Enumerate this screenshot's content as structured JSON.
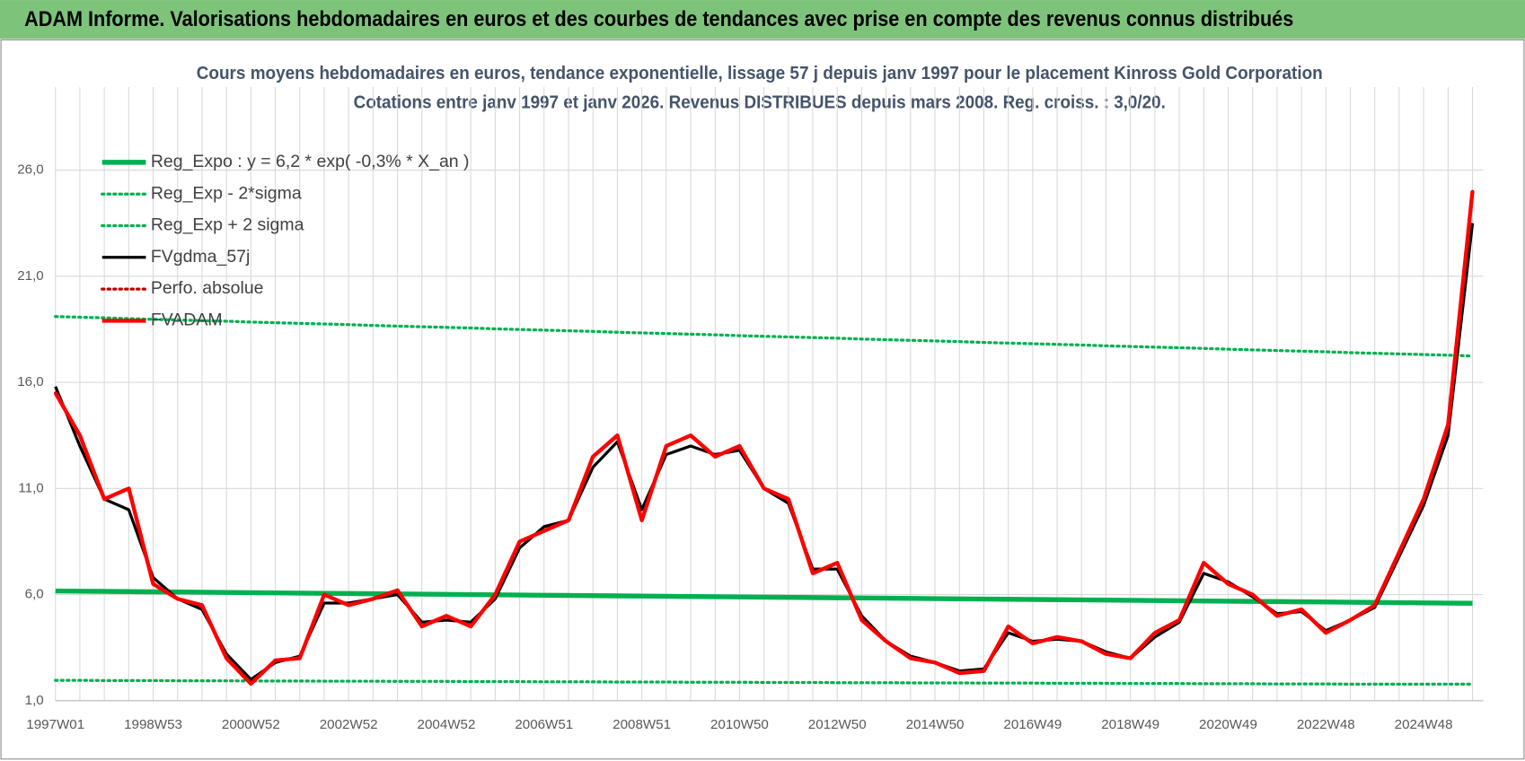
{
  "header": {
    "title": "ADAM Informe. Valorisations hebdomadaires en euros et des courbes de tendances avec prise en compte des revenus connus distribués"
  },
  "chart_data": {
    "type": "line",
    "title": "Cours moyens hebdomadaires en euros, tendance exponentielle, lissage 57 j depuis janv 1997  pour le placement Kinross Gold Corporation",
    "subtitle": "Cotations entre janv 1997 et janv 2026. Revenus DISTRIBUES depuis mars 2008.  Reg. croiss. : 3,0/20.",
    "legend": "upper left",
    "grid": true,
    "ylim": [
      1,
      29
    ],
    "yticks": [
      {
        "value": 1,
        "label": "1,0"
      },
      {
        "value": 6,
        "label": "6,0"
      },
      {
        "value": 11,
        "label": "11,0"
      },
      {
        "value": 16,
        "label": "16,0"
      },
      {
        "value": 21,
        "label": "21,0"
      },
      {
        "value": 26,
        "label": "26,0"
      }
    ],
    "categories": [
      "1997W01",
      null,
      null,
      null,
      "1998W53",
      null,
      null,
      null,
      "2000W52",
      null,
      null,
      null,
      "2002W52",
      null,
      null,
      null,
      "2004W52",
      null,
      null,
      null,
      "2006W51",
      null,
      null,
      null,
      "2008W51",
      null,
      null,
      null,
      "2010W50",
      null,
      null,
      null,
      "2012W50",
      null,
      null,
      null,
      "2014W50",
      null,
      null,
      null,
      "2016W49",
      null,
      null,
      null,
      "2018W49",
      null,
      null,
      null,
      "2020W49",
      null,
      null,
      null,
      "2022W48",
      null,
      null,
      null,
      "2024W48",
      null,
      null
    ],
    "series": [
      {
        "name": "Reg_Expo : y = 6,2 * exp( -0,3% *  X_an )",
        "color": "#00b050",
        "style": "solid",
        "width": 5,
        "values": [
          6.17,
          6.16,
          6.15,
          6.14,
          6.13,
          6.12,
          6.11,
          6.1,
          6.09,
          6.08,
          6.07,
          6.06,
          6.05,
          6.04,
          6.03,
          6.02,
          6.01,
          6.0,
          5.99,
          5.98,
          5.97,
          5.96,
          5.95,
          5.94,
          5.93,
          5.92,
          5.91,
          5.9,
          5.89,
          5.88,
          5.87,
          5.86,
          5.85,
          5.84,
          5.83,
          5.82,
          5.81,
          5.8,
          5.79,
          5.78,
          5.77,
          5.76,
          5.75,
          5.74,
          5.73,
          5.72,
          5.71,
          5.7,
          5.69,
          5.68,
          5.67,
          5.66,
          5.65,
          5.64,
          5.63,
          5.62,
          5.61,
          5.6,
          5.59
        ]
      },
      {
        "name": "Reg_Exp - 2*sigma",
        "color": "#00b050",
        "style": "dotted",
        "width": 3,
        "values": [
          1.96,
          1.96,
          1.95,
          1.95,
          1.95,
          1.94,
          1.94,
          1.94,
          1.93,
          1.93,
          1.93,
          1.92,
          1.92,
          1.92,
          1.91,
          1.91,
          1.91,
          1.9,
          1.9,
          1.9,
          1.89,
          1.89,
          1.89,
          1.88,
          1.88,
          1.88,
          1.87,
          1.87,
          1.87,
          1.86,
          1.86,
          1.86,
          1.85,
          1.85,
          1.85,
          1.84,
          1.84,
          1.84,
          1.83,
          1.83,
          1.83,
          1.82,
          1.82,
          1.82,
          1.81,
          1.81,
          1.81,
          1.8,
          1.8,
          1.8,
          1.79,
          1.79,
          1.79,
          1.78,
          1.78,
          1.78,
          1.78,
          1.78,
          1.78
        ]
      },
      {
        "name": "Reg_Exp + 2 sigma",
        "color": "#00b050",
        "style": "dotted",
        "width": 3,
        "values": [
          19.1,
          19.07,
          19.04,
          19.0,
          18.97,
          18.94,
          18.91,
          18.88,
          18.84,
          18.81,
          18.78,
          18.75,
          18.72,
          18.68,
          18.65,
          18.62,
          18.59,
          18.56,
          18.52,
          18.49,
          18.46,
          18.43,
          18.4,
          18.36,
          18.33,
          18.3,
          18.27,
          18.24,
          18.2,
          18.17,
          18.14,
          18.11,
          18.08,
          18.04,
          18.01,
          17.98,
          17.95,
          17.92,
          17.88,
          17.85,
          17.82,
          17.79,
          17.76,
          17.72,
          17.69,
          17.66,
          17.63,
          17.6,
          17.56,
          17.53,
          17.5,
          17.47,
          17.44,
          17.4,
          17.37,
          17.34,
          17.31,
          17.28,
          17.24
        ]
      },
      {
        "name": "FVgdma_57j",
        "color": "#000000",
        "style": "solid",
        "width": 3,
        "values": [
          15.8,
          13.0,
          10.5,
          10.0,
          6.8,
          5.8,
          5.3,
          3.2,
          2.0,
          2.8,
          3.1,
          5.6,
          5.6,
          5.8,
          6.0,
          4.7,
          4.8,
          4.7,
          5.8,
          8.2,
          9.2,
          9.5,
          12.0,
          13.2,
          10.0,
          12.6,
          13.0,
          12.6,
          12.8,
          11.0,
          10.3,
          7.2,
          7.2,
          5.0,
          3.8,
          3.1,
          2.8,
          2.4,
          2.5,
          4.2,
          3.8,
          3.9,
          3.8,
          3.3,
          3.0,
          4.0,
          4.7,
          7.0,
          6.6,
          5.9,
          5.1,
          5.2,
          4.3,
          4.8,
          5.4,
          7.8,
          10.2,
          13.5,
          23.5
        ]
      },
      {
        "name": "Perfo. absolue",
        "color": "#c00000",
        "style": "dotted",
        "width": 3,
        "values": [
          15.5,
          13.5,
          10.5,
          11.0,
          6.5,
          5.8,
          5.5,
          3.0,
          1.8,
          2.9,
          3.0,
          6.0,
          5.5,
          5.8,
          6.2,
          4.5,
          5.0,
          4.5,
          6.0,
          8.5,
          9.0,
          9.5,
          12.5,
          13.5,
          9.5,
          13.0,
          13.5,
          12.5,
          13.0,
          11.0,
          10.5,
          7.0,
          7.5,
          4.8,
          3.8,
          3.0,
          2.8,
          2.3,
          2.4,
          4.5,
          3.7,
          4.0,
          3.8,
          3.2,
          3.0,
          4.2,
          4.8,
          7.5,
          6.5,
          6.0,
          5.0,
          5.3,
          4.2,
          4.8,
          5.5,
          8.0,
          10.5,
          14.0,
          25.0
        ]
      },
      {
        "name": "FVADAM",
        "color": "#ff0000",
        "style": "solid",
        "width": 4,
        "values": [
          15.5,
          13.5,
          10.5,
          11.0,
          6.5,
          5.8,
          5.5,
          3.0,
          1.8,
          2.9,
          3.0,
          6.0,
          5.5,
          5.8,
          6.2,
          4.5,
          5.0,
          4.5,
          6.0,
          8.5,
          9.0,
          9.5,
          12.5,
          13.5,
          9.5,
          13.0,
          13.5,
          12.5,
          13.0,
          11.0,
          10.5,
          7.0,
          7.5,
          4.8,
          3.8,
          3.0,
          2.8,
          2.3,
          2.4,
          4.5,
          3.7,
          4.0,
          3.8,
          3.2,
          3.0,
          4.2,
          4.8,
          7.5,
          6.5,
          6.0,
          5.0,
          5.3,
          4.2,
          4.8,
          5.5,
          8.0,
          10.5,
          14.0,
          25.0
        ]
      }
    ]
  }
}
